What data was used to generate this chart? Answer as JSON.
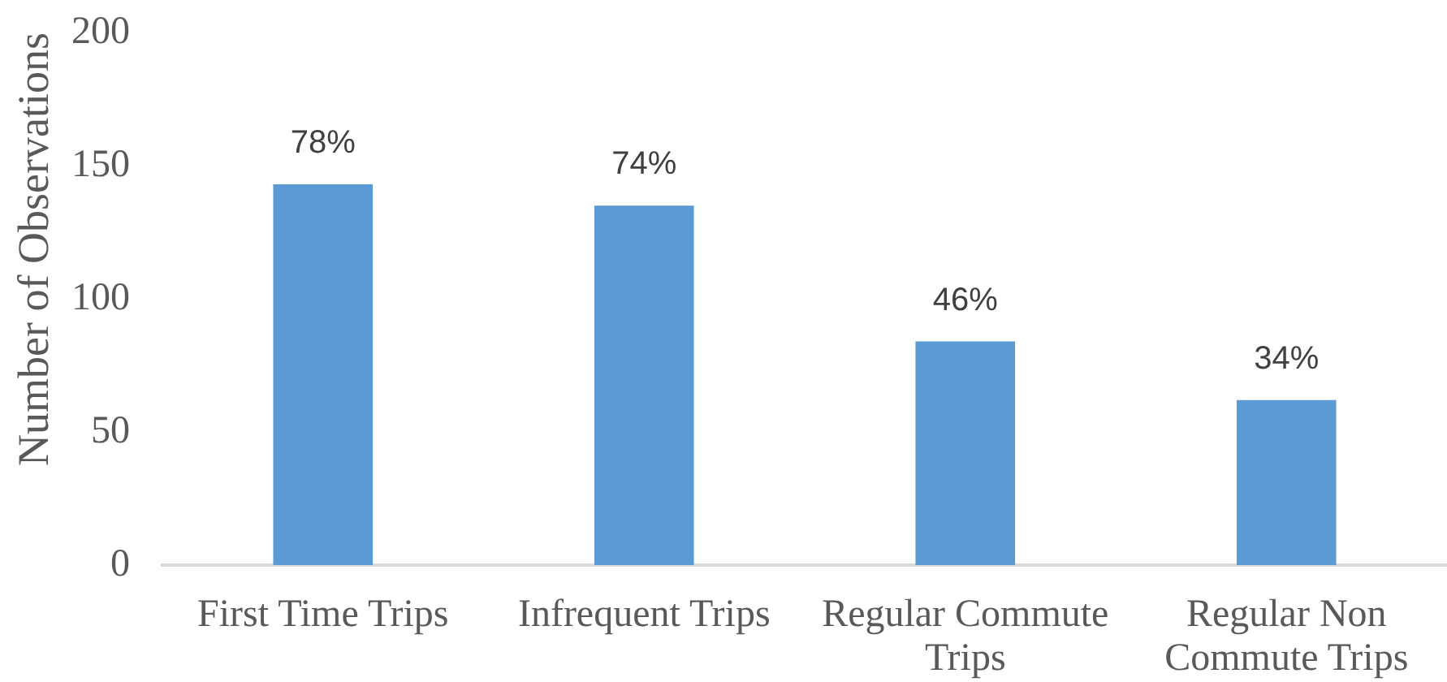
{
  "chart_data": {
    "type": "bar",
    "ylabel": "Number of Observations",
    "categories": [
      "First Time Trips",
      "Infrequent Trips",
      "Regular Commute Trips",
      "Regular Non Commute Trips"
    ],
    "values": [
      143,
      135,
      84,
      62
    ],
    "annotations": [
      {
        "text": "78%",
        "x": "First Time Trips",
        "y": 143
      },
      {
        "text": "74%",
        "x": "Infrequent Trips",
        "y": 135
      },
      {
        "text": "46%",
        "x": "Regular Commute Trips",
        "y": 84
      },
      {
        "text": "34%",
        "x": "Regular Non Commute Trips",
        "y": 62
      }
    ],
    "color": "#5b9bd5",
    "ylim": [
      0,
      200
    ],
    "yticks": [
      0,
      50,
      100,
      150,
      200
    ],
    "grid": false
  }
}
